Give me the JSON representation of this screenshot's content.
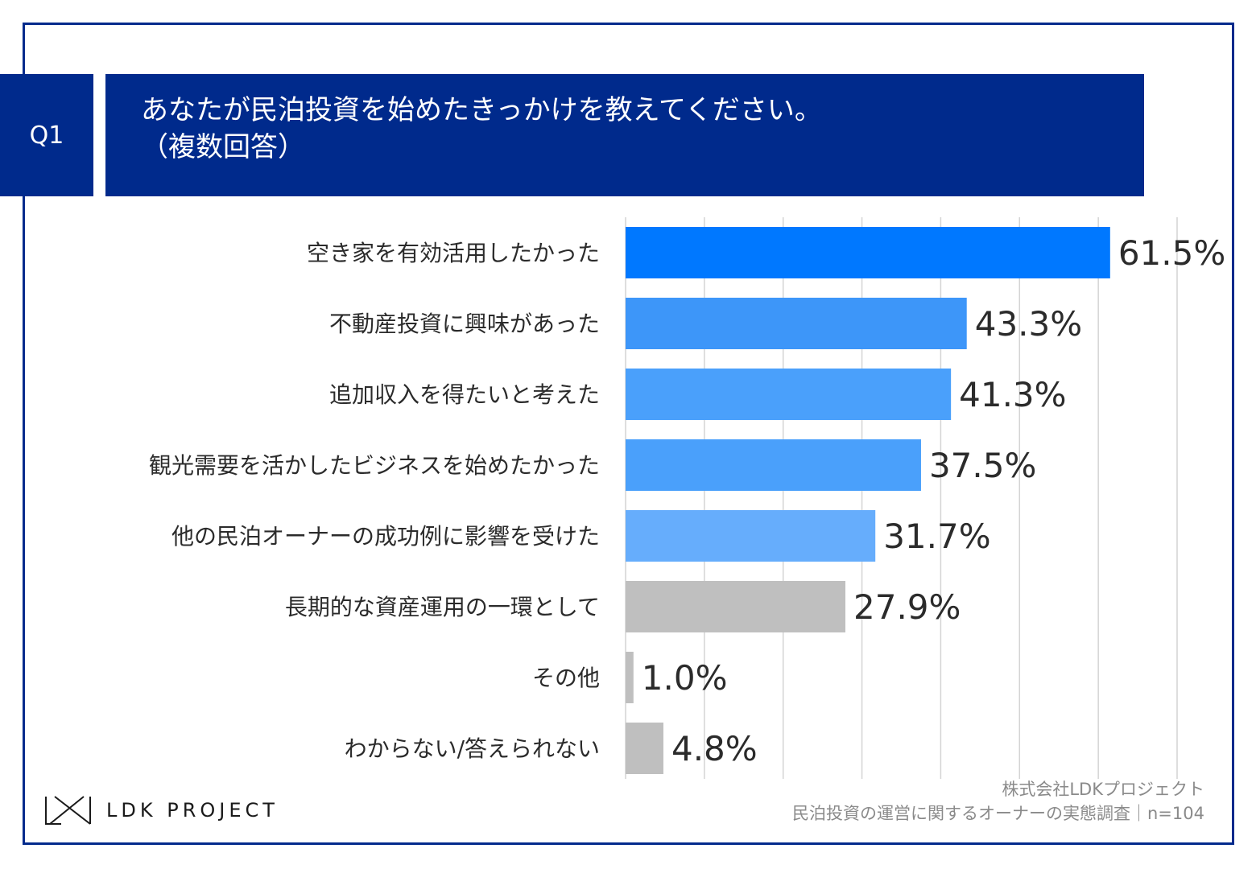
{
  "question": {
    "badge": "Q1",
    "title_line1": "あなたが民泊投資を始めたきっかけを教えてください。",
    "title_line2": "（複数回答）"
  },
  "colors": {
    "navy": "#002a8c",
    "grid": "#d4d4d4"
  },
  "chart_data": {
    "type": "bar",
    "orientation": "horizontal",
    "title": "あなたが民泊投資を始めたきっかけを教えてください。（複数回答）",
    "xlim": [
      0,
      70
    ],
    "grid": true,
    "categories": [
      "空き家を有効活用したかった",
      "不動産投資に興味があった",
      "追加収入を得たいと考えた",
      "観光需要を活かしたビジネスを始めたかった",
      "他の民泊オーナーの成功例に影響を受けた",
      "長期的な資産運用の一環として",
      "その他",
      "わからない/答えられない"
    ],
    "values": [
      61.5,
      43.3,
      41.3,
      37.5,
      31.7,
      27.9,
      1.0,
      4.8
    ],
    "value_labels": [
      "61.5%",
      "43.3%",
      "41.3%",
      "37.5%",
      "31.7%",
      "27.9%",
      "1.0%",
      "4.8%"
    ],
    "bar_colors": [
      "#0078ff",
      "#3d96f9",
      "#4aa0fb",
      "#4aa0fb",
      "#66adfc",
      "#bfbfbf",
      "#bfbfbf",
      "#bfbfbf"
    ]
  },
  "logo": {
    "text": "LDK PROJECT"
  },
  "source": {
    "line1": "株式会社LDKプロジェクト",
    "line2": "民泊投資の運営に関するオーナーの実態調査｜n=104"
  }
}
